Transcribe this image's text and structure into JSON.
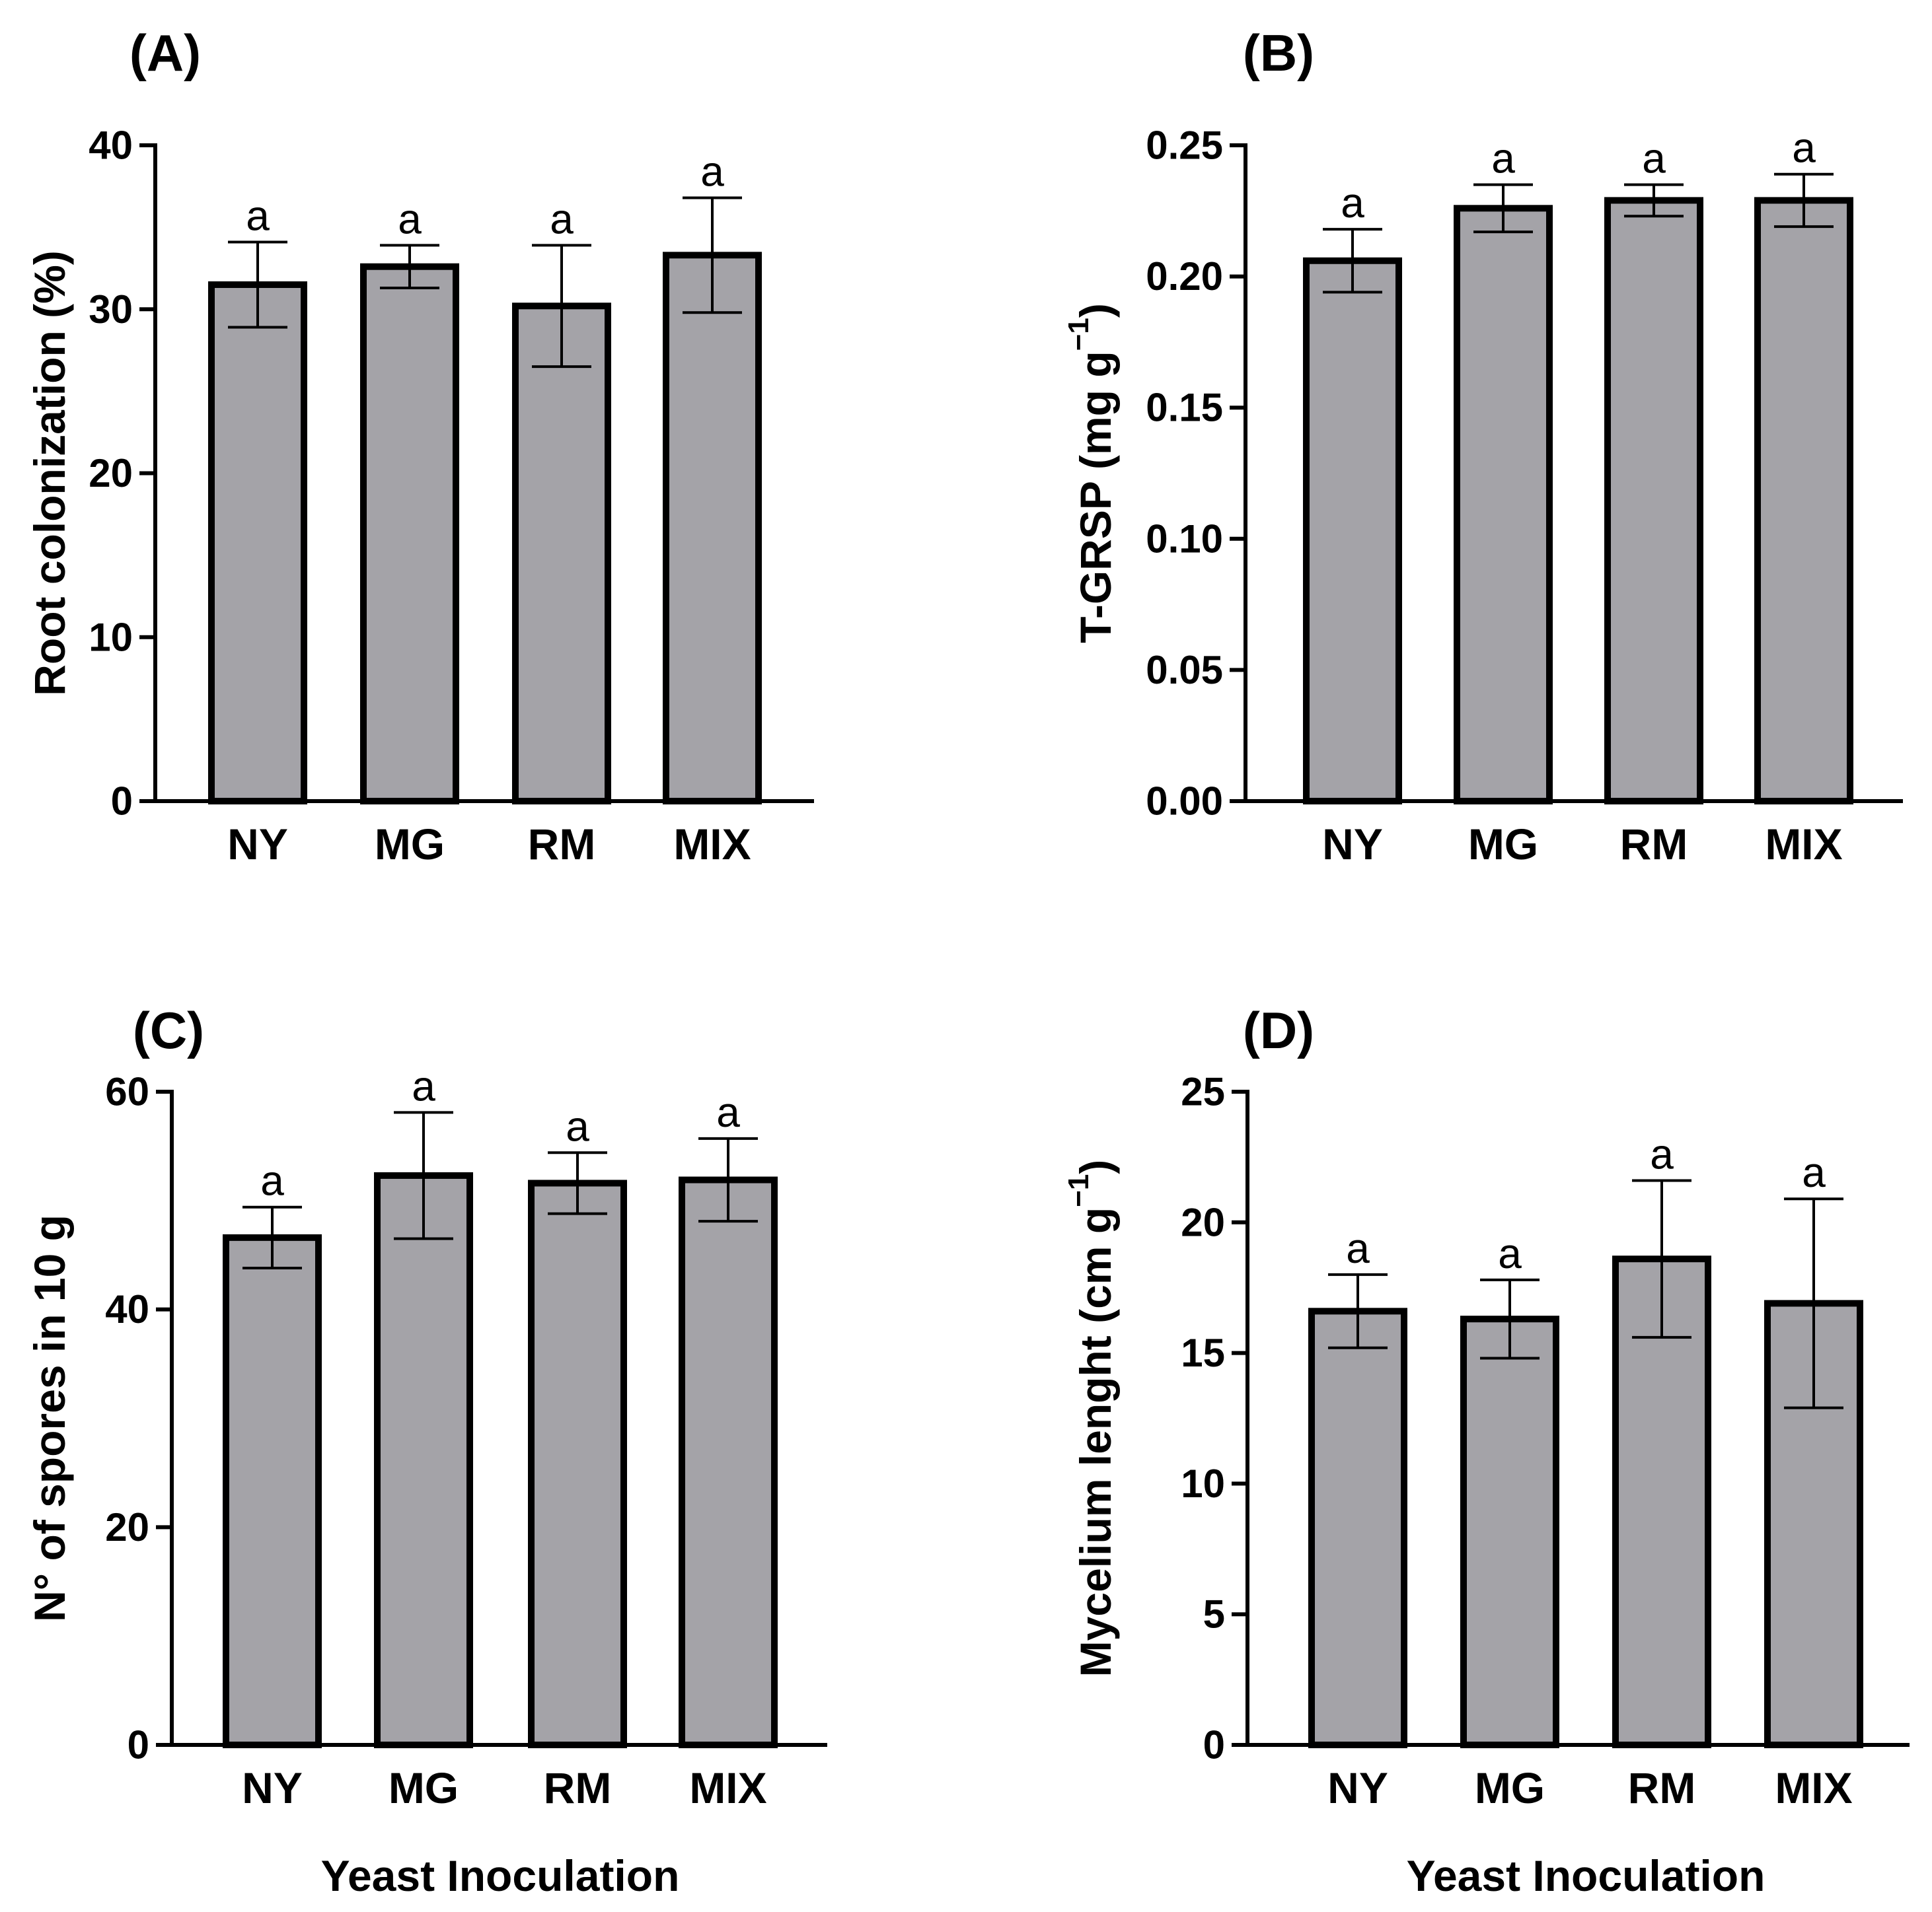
{
  "figure": {
    "xlabel": "Yeast Inoculation"
  },
  "chart_data": [
    {
      "type": "bar",
      "panel": "(A)",
      "ylabel": "Root colonization (%)",
      "ylabel_sup": "",
      "ylabel_end": "",
      "categories": [
        "NY",
        "MG",
        "RM",
        "MIX"
      ],
      "values": [
        31.5,
        32.6,
        30.2,
        33.3
      ],
      "errors": [
        2.6,
        1.3,
        3.7,
        3.5
      ],
      "letters": [
        "a",
        "a",
        "a",
        "a"
      ],
      "ylim": [
        0,
        40
      ],
      "yticks": [
        0,
        10,
        20,
        30,
        40
      ],
      "ytick_labels": [
        "0",
        "10",
        "20",
        "30",
        "40"
      ],
      "xlabel": "",
      "bar_color": "#a4a3a8"
    },
    {
      "type": "bar",
      "panel": "(B)",
      "ylabel": "T-GRSP (mg g",
      "ylabel_sup": "−1",
      "ylabel_end": ")",
      "categories": [
        "NY",
        "MG",
        "RM",
        "MIX"
      ],
      "values": [
        0.206,
        0.226,
        0.229,
        0.229
      ],
      "errors": [
        0.012,
        0.009,
        0.006,
        0.01
      ],
      "letters": [
        "a",
        "a",
        "a",
        "a"
      ],
      "ylim": [
        0,
        0.25
      ],
      "yticks": [
        0,
        0.05,
        0.1,
        0.15,
        0.2,
        0.25
      ],
      "ytick_labels": [
        "0.00",
        "0.05",
        "0.10",
        "0.15",
        "0.20",
        "0.25"
      ],
      "xlabel": "",
      "bar_color": "#a4a3a8"
    },
    {
      "type": "bar",
      "panel": "(C)",
      "ylabel": "N° of spores in 10 g",
      "ylabel_sup": "",
      "ylabel_end": "",
      "categories": [
        "NY",
        "MG",
        "RM",
        "MIX"
      ],
      "values": [
        46.6,
        52.3,
        51.6,
        51.9
      ],
      "errors": [
        2.8,
        5.8,
        2.8,
        3.8
      ],
      "letters": [
        "a",
        "a",
        "a",
        "a"
      ],
      "ylim": [
        0,
        60
      ],
      "yticks": [
        0,
        20,
        40,
        60
      ],
      "ytick_labels": [
        "0",
        "20",
        "40",
        "60"
      ],
      "xlabel": "Yeast Inoculation",
      "bar_color": "#a4a3a8"
    },
    {
      "type": "bar",
      "panel": "(D)",
      "ylabel": "Mycelium lenght (cm g",
      "ylabel_sup": "−1",
      "ylabel_end": ")",
      "categories": [
        "NY",
        "MG",
        "RM",
        "MIX"
      ],
      "values": [
        16.6,
        16.3,
        18.6,
        16.9
      ],
      "errors": [
        1.4,
        1.5,
        3.0,
        4.0
      ],
      "letters": [
        "a",
        "a",
        "a",
        "a"
      ],
      "ylim": [
        0,
        25
      ],
      "yticks": [
        0,
        5,
        10,
        15,
        20,
        25
      ],
      "ytick_labels": [
        "0",
        "5",
        "10",
        "15",
        "20",
        "25"
      ],
      "xlabel": "Yeast Inoculation",
      "bar_color": "#a4a3a8"
    }
  ]
}
